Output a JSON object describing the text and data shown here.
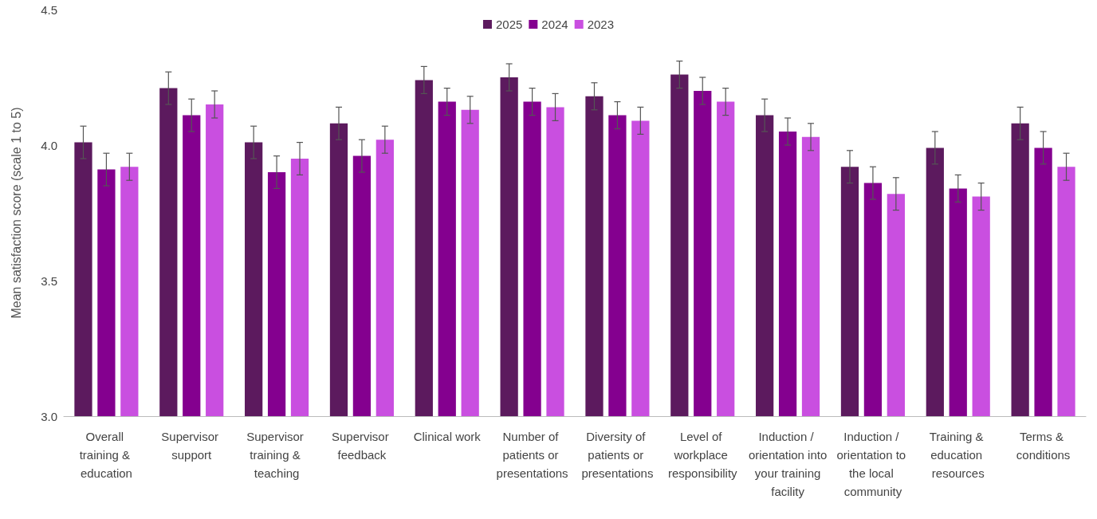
{
  "chart_data": {
    "type": "bar",
    "ylabel": "Mean satisfaction score (scale 1 to 5)",
    "categories": [
      "Overall training & education",
      "Supervisor support",
      "Supervisor training & teaching",
      "Supervisor feedback",
      "Clinical work",
      "Number of patients or presentations",
      "Diversity of patients or presentations",
      "Level of workplace responsibility",
      "Induction / orientation into your training facility",
      "Induction / orientation to the local community",
      "Training & education resources",
      "Terms & conditions"
    ],
    "series": [
      {
        "name": "2025",
        "color": "#5c1a5e",
        "values": [
          4.01,
          4.21,
          4.01,
          4.08,
          4.24,
          4.25,
          4.18,
          4.26,
          4.11,
          3.92,
          3.99,
          4.08
        ],
        "errors": [
          0.06,
          0.06,
          0.06,
          0.06,
          0.05,
          0.05,
          0.05,
          0.05,
          0.06,
          0.06,
          0.06,
          0.06
        ]
      },
      {
        "name": "2024",
        "color": "#84008f",
        "values": [
          3.91,
          4.11,
          3.9,
          3.96,
          4.16,
          4.16,
          4.11,
          4.2,
          4.05,
          3.86,
          3.84,
          3.99
        ],
        "errors": [
          0.06,
          0.06,
          0.06,
          0.06,
          0.05,
          0.05,
          0.05,
          0.05,
          0.05,
          0.06,
          0.05,
          0.06
        ]
      },
      {
        "name": "2023",
        "color": "#c94fe0",
        "values": [
          3.92,
          4.15,
          3.95,
          4.02,
          4.13,
          4.14,
          4.09,
          4.16,
          4.03,
          3.82,
          3.81,
          3.92
        ],
        "errors": [
          0.05,
          0.05,
          0.06,
          0.05,
          0.05,
          0.05,
          0.05,
          0.05,
          0.05,
          0.06,
          0.05,
          0.05
        ]
      }
    ],
    "ylim": [
      3.0,
      4.5
    ],
    "yticks": [
      {
        "value": 3.0,
        "label": "3.0"
      },
      {
        "value": 3.5,
        "label": "3.5"
      },
      {
        "value": 4.0,
        "label": "4.0"
      },
      {
        "value": 4.5,
        "label": "4.5"
      }
    ],
    "grid": false,
    "legend": "top"
  }
}
